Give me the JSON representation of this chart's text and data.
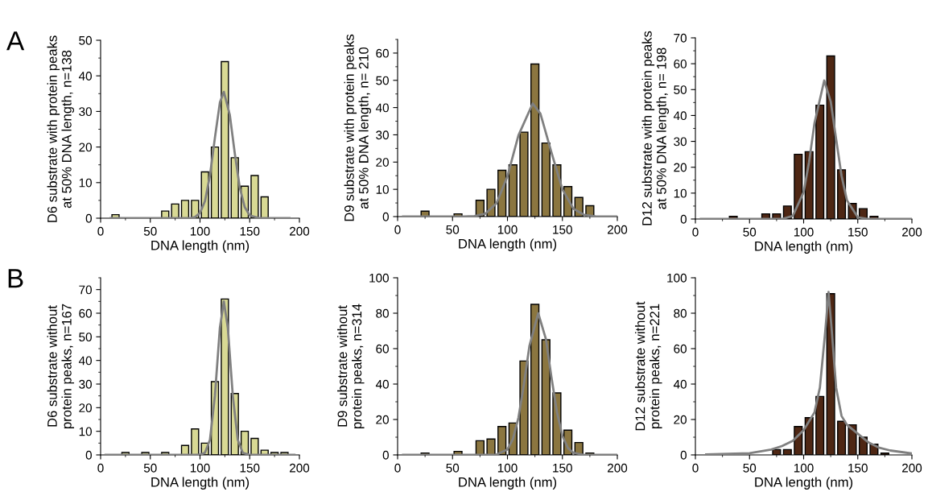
{
  "chart_data": [
    {
      "type": "histogram",
      "ylabel": "D6 substrate with protein peaks\nat 50% DNA length, n=138",
      "xlabel": "DNA length (nm)",
      "annotations": [
        "A"
      ],
      "color": "#d8d994",
      "bins": [
        10,
        20,
        30,
        40,
        50,
        60,
        70,
        80,
        90,
        100,
        110,
        120,
        130,
        140,
        150,
        160,
        170
      ],
      "values": [
        1,
        0,
        0,
        0,
        0,
        2,
        4,
        5,
        5,
        13,
        20,
        44,
        17,
        9,
        12,
        6
      ],
      "series": [
        {
          "type": "line",
          "color": "#808080",
          "x": [
            10,
            90,
            95,
            100,
            105,
            110,
            115,
            120,
            124,
            130,
            135,
            140,
            145,
            150,
            160,
            190
          ],
          "values": [
            0,
            0,
            0.3,
            1.5,
            4.8,
            12,
            22.6,
            32.5,
            35.5,
            29,
            18.2,
            8.6,
            3.1,
            0.8,
            0,
            0
          ]
        }
      ],
      "xlim": [
        0,
        200
      ],
      "xticks": [
        0,
        50,
        100,
        150,
        200
      ],
      "ylim": [
        0,
        50
      ],
      "yticks": [
        0,
        10,
        20,
        30,
        40,
        50
      ]
    },
    {
      "type": "histogram",
      "ylabel": "D9 substrate with protein peaks\nat 50% DNA length, n= 210",
      "xlabel": "DNA length (nm)",
      "color": "#8b7640",
      "bins": [
        20,
        30,
        40,
        50,
        60,
        70,
        80,
        90,
        100,
        110,
        120,
        130,
        140,
        150,
        160,
        170,
        180
      ],
      "values": [
        2,
        0,
        0,
        1,
        0,
        6,
        10,
        17,
        19,
        31,
        56,
        27,
        19,
        11,
        7,
        4
      ],
      "series": [
        {
          "type": "line",
          "color": "#808080",
          "x": [
            5,
            60,
            70,
            80,
            90,
            100,
            110,
            123,
            130,
            140,
            150,
            160,
            170,
            180,
            200
          ],
          "values": [
            0,
            0,
            0.2,
            1.1,
            4.9,
            14.8,
            29.8,
            41.5,
            37.8,
            23.6,
            10,
            2.9,
            0.6,
            0.1,
            0
          ]
        }
      ],
      "xlim": [
        0,
        200
      ],
      "xticks": [
        0,
        50,
        100,
        150,
        200
      ],
      "ylim": [
        0,
        65
      ],
      "yticks": [
        0,
        10,
        20,
        30,
        40,
        50,
        60
      ]
    },
    {
      "type": "histogram",
      "ylabel": "D12 substrate with protein peaks\nat 50% DNA length, n= 198",
      "xlabel": "DNA length (nm)",
      "color": "#4e2714",
      "bins": [
        30,
        40,
        50,
        60,
        70,
        80,
        90,
        100,
        110,
        120,
        130,
        140,
        150,
        160,
        170
      ],
      "values": [
        1,
        0,
        0,
        2,
        2,
        5,
        25,
        26,
        44,
        63,
        19,
        6,
        4,
        1
      ],
      "series": [
        {
          "type": "line",
          "color": "#808080",
          "x": [
            5,
            70,
            80,
            90,
            100,
            105,
            110,
            119,
            125,
            130,
            135,
            140,
            150,
            160,
            200
          ],
          "values": [
            0,
            0,
            0,
            1.2,
            10.4,
            22,
            37,
            53.5,
            45.4,
            30.9,
            16.7,
            7.2,
            0.7,
            0,
            0
          ]
        }
      ],
      "xlim": [
        0,
        200
      ],
      "xticks": [
        0,
        50,
        100,
        150,
        200
      ],
      "ylim": [
        0,
        70
      ],
      "yticks": [
        0,
        10,
        20,
        30,
        40,
        50,
        60,
        70
      ]
    },
    {
      "type": "histogram",
      "ylabel": "D6 substrate without\nprotein peaks, n=167",
      "xlabel": "DNA length (nm)",
      "annotations": [
        "B"
      ],
      "color": "#d8d994",
      "bins": [
        20,
        30,
        40,
        50,
        60,
        70,
        80,
        90,
        100,
        110,
        120,
        130,
        140,
        150,
        160,
        170,
        180,
        190
      ],
      "values": [
        1,
        0,
        1,
        0,
        1,
        0,
        4,
        11,
        5,
        31,
        66,
        26,
        10,
        7,
        2,
        1,
        1
      ],
      "series": [
        {
          "type": "line",
          "color": "#808080",
          "x": [
            5,
            95,
            100,
            105,
            110,
            115,
            120,
            124,
            128,
            133,
            138,
            143,
            150,
            195
          ],
          "values": [
            0,
            0,
            0.1,
            0.9,
            6.4,
            25,
            53.8,
            65,
            53.8,
            25,
            6.4,
            0.9,
            0,
            0
          ]
        }
      ],
      "xlim": [
        0,
        200
      ],
      "xticks": [
        0,
        50,
        100,
        150,
        200
      ],
      "ylim": [
        0,
        75
      ],
      "yticks": [
        0,
        10,
        20,
        30,
        40,
        50,
        60,
        70
      ]
    },
    {
      "type": "histogram",
      "ylabel": "D9 substrate without\nprotein peaks, n=314",
      "xlabel": "DNA length (nm)",
      "color": "#8b7640",
      "bins": [
        20,
        30,
        40,
        50,
        60,
        70,
        80,
        90,
        100,
        110,
        120,
        130,
        140,
        150,
        160,
        170,
        180
      ],
      "values": [
        1,
        0,
        0,
        2,
        0,
        8,
        9,
        16,
        18,
        53,
        85,
        65,
        35,
        14,
        7,
        1
      ],
      "series": [
        {
          "type": "line",
          "color": "#808080",
          "x": [
            5,
            80,
            90,
            100,
            105,
            110,
            115,
            120,
            128,
            135,
            140,
            145,
            150,
            155,
            160,
            170,
            200
          ],
          "values": [
            0,
            0,
            0.2,
            3.1,
            9,
            21,
            40,
            61.5,
            80,
            65.4,
            44,
            24.3,
            10.8,
            3.9,
            1.2,
            0,
            0
          ]
        }
      ],
      "xlim": [
        0,
        200
      ],
      "xticks": [
        0,
        50,
        100,
        150,
        200
      ],
      "ylim": [
        0,
        100
      ],
      "yticks": [
        0,
        20,
        40,
        60,
        80,
        100
      ]
    },
    {
      "type": "histogram",
      "ylabel": "D12 substrate without\nprotein peaks, n=221",
      "xlabel": "DNA length (nm)",
      "color": "#4e2714",
      "bins": [
        70,
        80,
        90,
        100,
        110,
        120,
        130,
        140,
        150,
        160,
        170,
        180
      ],
      "values": [
        3,
        3,
        16,
        21,
        33,
        91,
        19,
        17,
        10,
        6,
        1
      ],
      "series": [
        {
          "type": "line",
          "color": "#808080",
          "x": [
            10,
            50,
            70,
            80,
            90,
            100,
            110,
            115,
            120,
            123,
            126,
            130,
            135,
            140,
            150,
            160,
            170,
            180,
            200
          ],
          "values": [
            0.3,
            1,
            3,
            5,
            8,
            14,
            24,
            38,
            70,
            92,
            70,
            38,
            22,
            17,
            12,
            7,
            4,
            2.5,
            0.8
          ]
        }
      ],
      "xlim": [
        0,
        200
      ],
      "xticks": [
        0,
        50,
        100,
        150,
        200
      ],
      "ylim": [
        0,
        100
      ],
      "yticks": [
        0,
        20,
        40,
        60,
        80,
        100
      ]
    }
  ]
}
